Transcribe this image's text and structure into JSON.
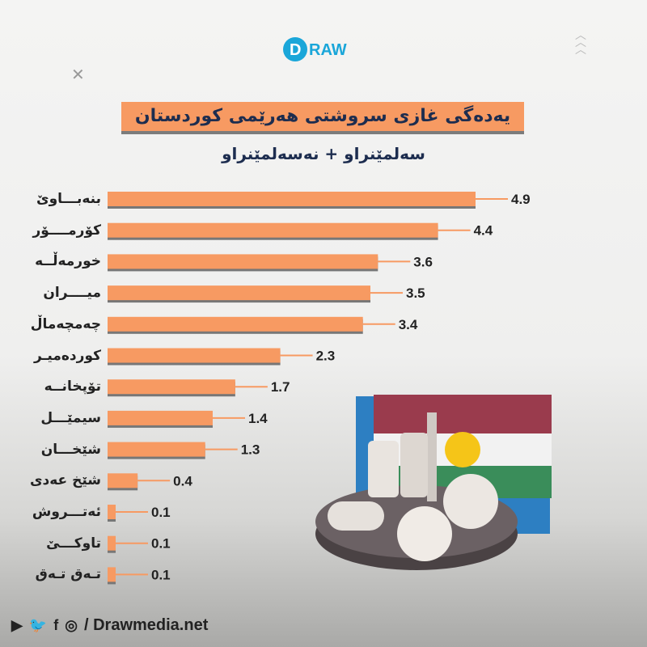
{
  "brand": {
    "logo_text": "DRAW",
    "website": "/ Drawmedia.net",
    "social_icons": [
      "youtube-icon",
      "twitter-icon",
      "facebook-icon",
      "instagram-icon"
    ]
  },
  "colors": {
    "bar": "#f79a62",
    "title_bg": "#f79a62",
    "title_text": "#1d2d4f"
  },
  "chart_data": {
    "type": "bar",
    "orientation": "horizontal",
    "title": "یەدەگی غازی سروشتی هەرێمی کوردستان",
    "subtitle": "سەلمێنراو + نەسەلمێنراو",
    "categories": [
      "بنەبـــاوێ",
      "کۆرمــــۆر",
      "خورمەڵــە",
      "میــــران",
      "چەمچەماڵ",
      "کوردەمیـر",
      "تۆپخانــە",
      "سیمێـــل",
      "شێخـــان",
      "شێخ عەدی",
      "ئەتـــروش",
      "تاوکـــێ",
      "تـەق تـەق"
    ],
    "values": [
      4.9,
      4.4,
      3.6,
      3.5,
      3.4,
      2.3,
      1.7,
      1.4,
      1.3,
      0.4,
      0.1,
      0.1,
      0.1
    ],
    "value_labels": [
      "4.9",
      "4.4",
      "3.6",
      "3.5",
      "3.4",
      "2.3",
      "1.7",
      "1.4",
      "1.3",
      "0.4",
      "0.1",
      "0.1",
      "0.1"
    ],
    "xlim": [
      0,
      5
    ],
    "grid": false,
    "legend": "none"
  }
}
